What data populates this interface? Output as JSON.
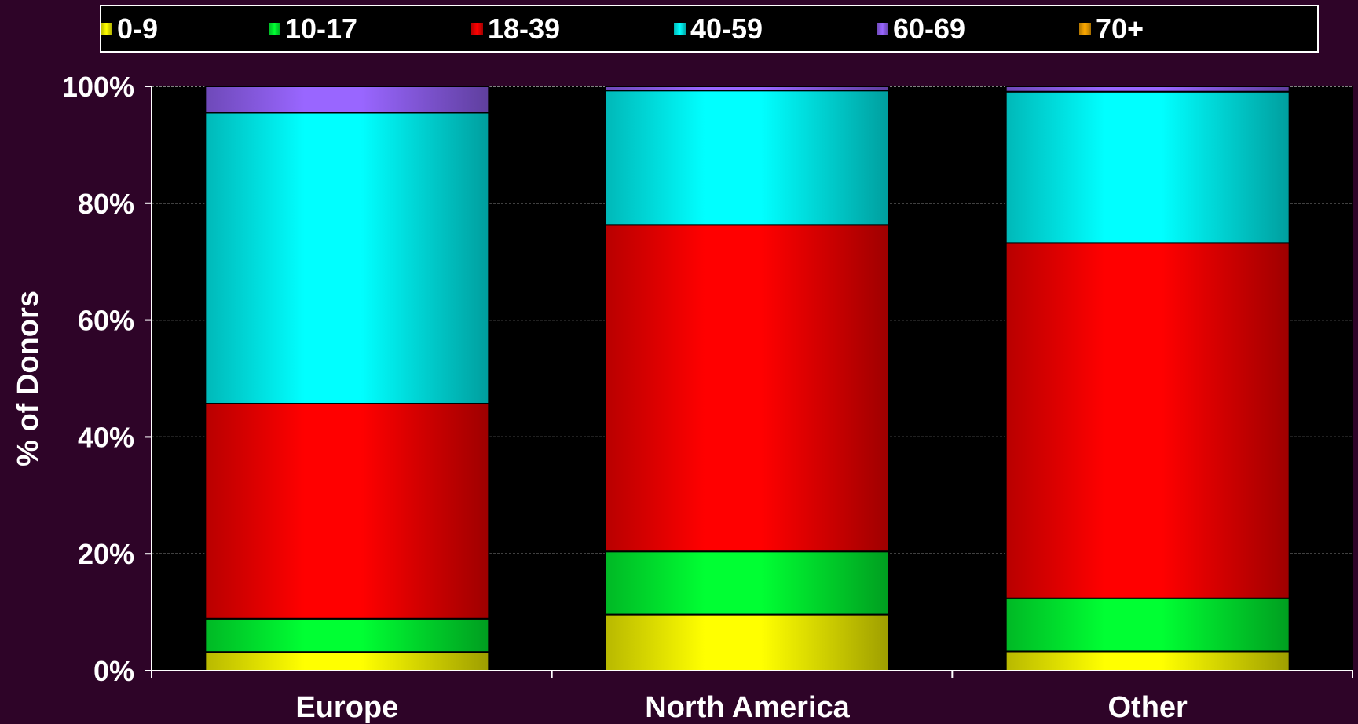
{
  "chart_data": {
    "type": "bar",
    "stacked": true,
    "categories": [
      "Europe",
      "North America",
      "Other"
    ],
    "series": [
      {
        "name": "0-9",
        "color": "#ffff00",
        "values": [
          3.2,
          9.6,
          3.3
        ]
      },
      {
        "name": "10-17",
        "color": "#00ff33",
        "values": [
          5.7,
          10.8,
          9.1
        ]
      },
      {
        "name": "18-39",
        "color": "#ff0000",
        "values": [
          36.8,
          55.9,
          60.8
        ]
      },
      {
        "name": "40-59",
        "color": "#00ffff",
        "values": [
          49.8,
          23.0,
          25.9
        ]
      },
      {
        "name": "60-69",
        "color": "#9966ff",
        "values": [
          4.5,
          0.7,
          0.9
        ]
      },
      {
        "name": "70+",
        "color": "#ffaa00",
        "values": [
          0.0,
          0.0,
          0.0
        ]
      }
    ],
    "ylabel": "% of Donors",
    "xlabel": "",
    "ylim": [
      0,
      100
    ],
    "yticks": [
      0,
      20,
      40,
      60,
      80,
      100
    ],
    "ytick_labels": [
      "0%",
      "20%",
      "40%",
      "60%",
      "80%",
      "100%"
    ],
    "grid": true,
    "legend_position": "top",
    "background_color": "#2e0428",
    "plot_background": "#000000"
  }
}
